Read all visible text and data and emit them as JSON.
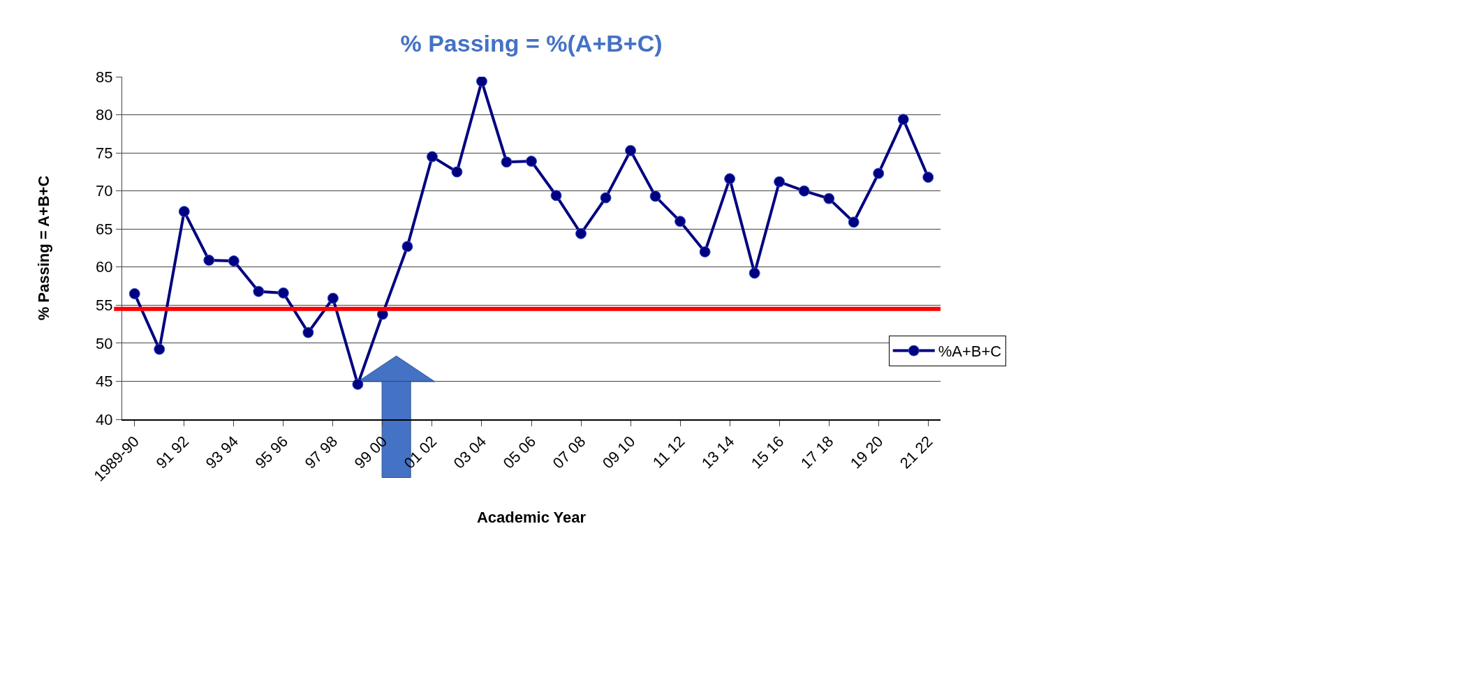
{
  "chart_data": {
    "type": "line",
    "title": "% Passing = %(A+B+C)",
    "xlabel": "Academic Year",
    "ylabel": "% Passing = A+B+C",
    "categories": [
      "1989-90",
      null,
      "91 92",
      null,
      "93 94",
      null,
      "95 96",
      null,
      "97 98",
      null,
      "99 00",
      null,
      "01 02",
      null,
      "03 04",
      null,
      "05 06",
      null,
      "07 08",
      null,
      "09 10",
      null,
      "11 12",
      null,
      "13 14",
      null,
      "15 16",
      null,
      "17 18",
      null,
      "19 20",
      null,
      "21 22"
    ],
    "series": [
      {
        "name": "%A+B+C",
        "color": "#000080",
        "values": [
          56.5,
          49.2,
          67.3,
          60.9,
          60.8,
          56.8,
          56.6,
          51.4,
          55.9,
          44.6,
          53.8,
          62.7,
          74.5,
          72.5,
          84.4,
          73.8,
          73.9,
          69.4,
          64.4,
          69.1,
          75.3,
          69.3,
          66.0,
          62.0,
          71.6,
          59.2,
          71.2,
          70.0,
          69.0,
          65.9,
          72.3,
          79.4,
          71.8
        ]
      }
    ],
    "ylim": [
      40,
      85
    ],
    "yticks": [
      40,
      45,
      50,
      55,
      60,
      65,
      70,
      75,
      80,
      85
    ],
    "ref_lines": [
      {
        "axis": "y",
        "value": 54.5,
        "color": "#ff0000",
        "line_style": "solid"
      }
    ],
    "grid": "y",
    "legend": "bottom right",
    "marker": "circle",
    "line_style": "solid"
  }
}
